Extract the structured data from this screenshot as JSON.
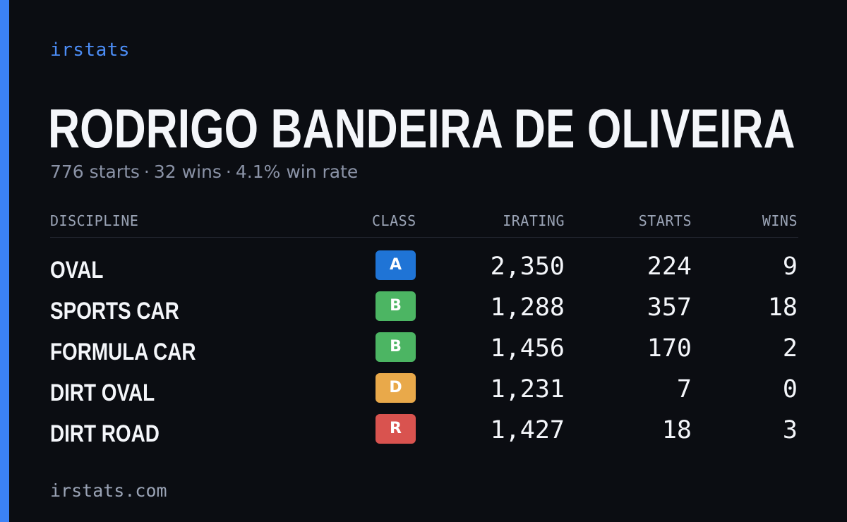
{
  "brand": "irstats",
  "driver": {
    "name": "RODRIGO BANDEIRA DE OLIVEIRA",
    "starts_text": "776 starts",
    "wins_text": "32 wins",
    "win_rate_text": "4.1% win rate",
    "separator": "·"
  },
  "table": {
    "headers": {
      "discipline": "DISCIPLINE",
      "class": "CLASS",
      "irating": "IRATING",
      "starts": "STARTS",
      "wins": "WINS"
    },
    "rows": [
      {
        "discipline": "OVAL",
        "class": "A",
        "class_color": "#1f74d6",
        "irating": "2,350",
        "starts": "224",
        "wins": "9"
      },
      {
        "discipline": "SPORTS CAR",
        "class": "B",
        "class_color": "#4cb563",
        "irating": "1,288",
        "starts": "357",
        "wins": "18"
      },
      {
        "discipline": "FORMULA CAR",
        "class": "B",
        "class_color": "#4cb563",
        "irating": "1,456",
        "starts": "170",
        "wins": "2"
      },
      {
        "discipline": "DIRT OVAL",
        "class": "D",
        "class_color": "#e9a94a",
        "irating": "1,231",
        "starts": "7",
        "wins": "0"
      },
      {
        "discipline": "DIRT ROAD",
        "class": "R",
        "class_color": "#d9534f",
        "irating": "1,427",
        "starts": "18",
        "wins": "3"
      }
    ]
  },
  "footer": "irstats.com",
  "colors": {
    "background": "#0b0d12",
    "accent": "#3b82f6",
    "brand_text": "#4c8df6"
  }
}
